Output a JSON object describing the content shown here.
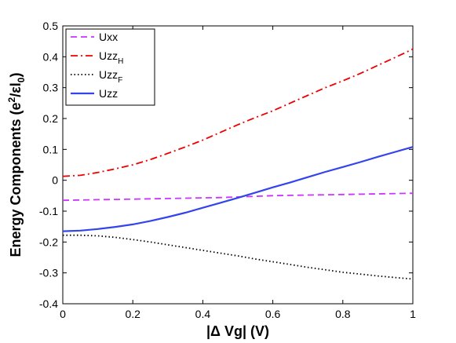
{
  "chart_data": {
    "type": "line",
    "xlabel": "|Δ Vg| (V)",
    "ylabel_parts": [
      "Energy Components (e",
      "2",
      "/εl",
      "0",
      ")"
    ],
    "xlim": [
      0,
      1
    ],
    "ylim": [
      -0.4,
      0.5
    ],
    "xticks": [
      0,
      0.2,
      0.4,
      0.6,
      0.8,
      1
    ],
    "xtick_labels": [
      "0",
      "0.2",
      "0.4",
      "0.6",
      "0.8",
      "1"
    ],
    "yticks": [
      -0.4,
      -0.3,
      -0.2,
      -0.1,
      0,
      0.1,
      0.2,
      0.3,
      0.4,
      0.5
    ],
    "ytick_labels": [
      "-0.4",
      "-0.3",
      "-0.2",
      "-0.1",
      "0",
      "0.1",
      "0.2",
      "0.3",
      "0.4",
      "0.5"
    ],
    "grid": false,
    "legend_position": "top-left",
    "x": [
      0,
      0.05,
      0.1,
      0.15,
      0.2,
      0.25,
      0.3,
      0.35,
      0.4,
      0.45,
      0.5,
      0.55,
      0.6,
      0.65,
      0.7,
      0.75,
      0.8,
      0.85,
      0.9,
      0.95,
      1.0
    ],
    "series": [
      {
        "name": "Uxx",
        "color": "#cc33ff",
        "dash": "dashed",
        "values": [
          -0.065,
          -0.064,
          -0.063,
          -0.062,
          -0.061,
          -0.06,
          -0.059,
          -0.058,
          -0.057,
          -0.056,
          -0.054,
          -0.052,
          -0.05,
          -0.049,
          -0.048,
          -0.047,
          -0.046,
          -0.045,
          -0.044,
          -0.043,
          -0.042
        ]
      },
      {
        "name": "Uzz",
        "sub": "H",
        "color": "#ee0000",
        "dash": "dashdot",
        "values": [
          0.013,
          0.016,
          0.025,
          0.037,
          0.05,
          0.067,
          0.087,
          0.108,
          0.13,
          0.155,
          0.18,
          0.203,
          0.225,
          0.25,
          0.275,
          0.3,
          0.322,
          0.346,
          0.372,
          0.398,
          0.425
        ]
      },
      {
        "name": "Uzz",
        "sub": "F",
        "color": "#000000",
        "dash": "dotted",
        "values": [
          -0.178,
          -0.178,
          -0.18,
          -0.185,
          -0.192,
          -0.2,
          -0.209,
          -0.218,
          -0.227,
          -0.236,
          -0.245,
          -0.255,
          -0.264,
          -0.273,
          -0.282,
          -0.29,
          -0.298,
          -0.304,
          -0.31,
          -0.315,
          -0.32
        ]
      },
      {
        "name": "Uzz",
        "color": "#3344ee",
        "dash": "solid",
        "values": [
          -0.165,
          -0.163,
          -0.158,
          -0.151,
          -0.143,
          -0.132,
          -0.119,
          -0.105,
          -0.089,
          -0.073,
          -0.057,
          -0.04,
          -0.023,
          -0.007,
          0.01,
          0.027,
          0.043,
          0.059,
          0.076,
          0.092,
          0.108
        ]
      }
    ]
  }
}
